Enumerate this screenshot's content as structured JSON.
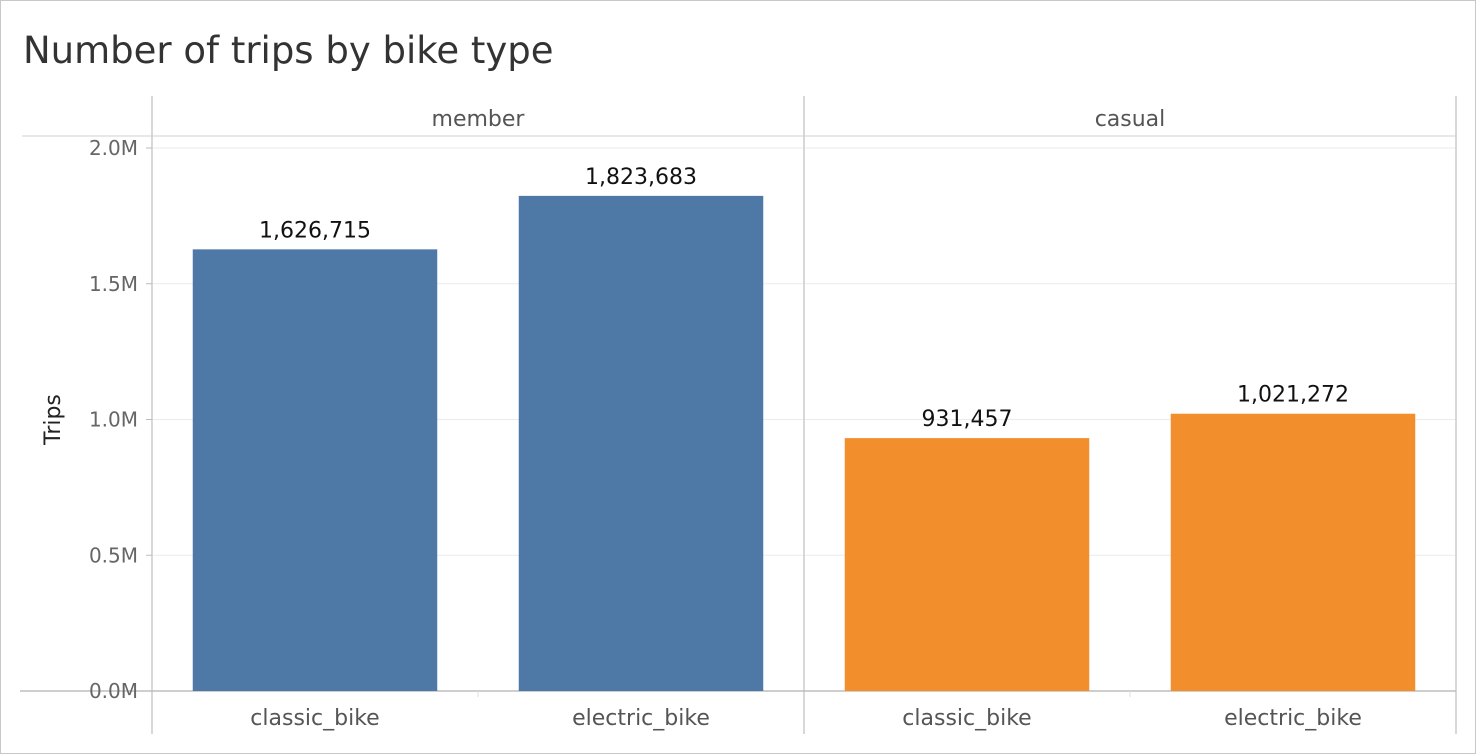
{
  "chart_data": {
    "type": "bar",
    "title": "Number of trips by bike type",
    "ylabel": "Trips",
    "xlabel": "",
    "ylim": [
      0,
      2000000
    ],
    "yticks": [
      {
        "value": 0,
        "label": "0.0M"
      },
      {
        "value": 500000,
        "label": "0.5M"
      },
      {
        "value": 1000000,
        "label": "1.0M"
      },
      {
        "value": 1500000,
        "label": "1.5M"
      },
      {
        "value": 2000000,
        "label": "2.0M"
      }
    ],
    "grid": true,
    "panels": [
      {
        "name": "member",
        "color": "#4e79a7",
        "categories": [
          "classic_bike",
          "electric_bike"
        ],
        "values": [
          1626715,
          1823683
        ],
        "labels": [
          "1,626,715",
          "1,823,683"
        ]
      },
      {
        "name": "casual",
        "color": "#f28e2b",
        "categories": [
          "classic_bike",
          "electric_bike"
        ],
        "values": [
          931457,
          1021272
        ],
        "labels": [
          "931,457",
          "1,021,272"
        ]
      }
    ]
  }
}
